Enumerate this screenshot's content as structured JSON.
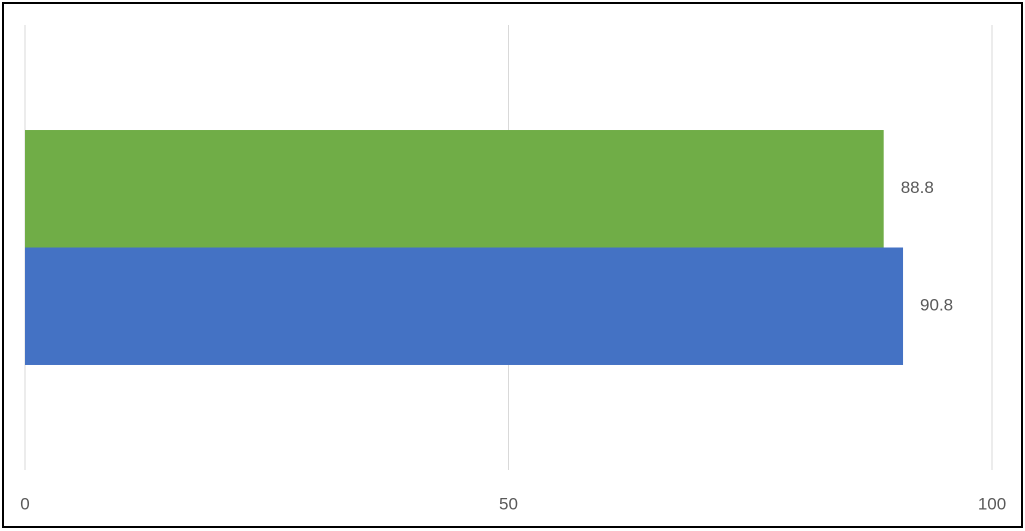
{
  "chart_data": {
    "type": "bar",
    "orientation": "horizontal",
    "categories": [
      null
    ],
    "series": [
      {
        "color": "#4472c4",
        "values": [
          90.8
        ]
      },
      {
        "color": "#70ad47",
        "values": [
          88.8
        ]
      }
    ],
    "xlim": [
      0,
      100
    ],
    "xticks": [
      0,
      50,
      100
    ],
    "grid": true
  }
}
